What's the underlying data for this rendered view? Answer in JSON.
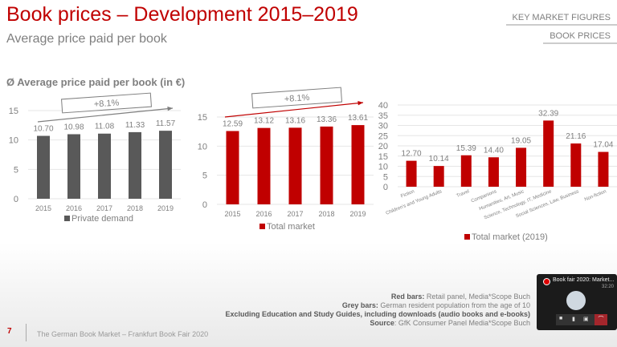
{
  "header": {
    "title": "Book prices – Development 2015–2019",
    "subtitle": "Average price paid per book"
  },
  "nav": {
    "items": [
      "KEY MARKET FIGURES",
      "BOOK PRICES"
    ]
  },
  "section_title": "Ø Average price paid per book (in €)",
  "colors": {
    "grey": "#595959",
    "red": "#c00000"
  },
  "chart_data": [
    {
      "type": "bar",
      "categories": [
        "2015",
        "2016",
        "2017",
        "2018",
        "2019"
      ],
      "series": [
        {
          "name": "Private demand",
          "values": [
            10.7,
            10.98,
            11.08,
            11.33,
            11.57
          ]
        }
      ],
      "ylim": [
        0,
        15
      ],
      "yticks": [
        0,
        5,
        10,
        15
      ],
      "annotation": "+8.1%",
      "legend": "bottom",
      "color": "#595959",
      "grid": true
    },
    {
      "type": "bar",
      "categories": [
        "2015",
        "2016",
        "2017",
        "2018",
        "2019"
      ],
      "series": [
        {
          "name": "Total market",
          "values": [
            12.59,
            13.12,
            13.16,
            13.36,
            13.61
          ]
        }
      ],
      "ylim": [
        0,
        15
      ],
      "yticks": [
        0,
        5,
        10,
        15
      ],
      "annotation": "+8.1%",
      "legend": "bottom",
      "color": "#c00000",
      "grid": true
    },
    {
      "type": "bar",
      "categories": [
        "Fiction",
        "Children's and Young Adults",
        "Travel",
        "Companions",
        "Humanities, Art, Music",
        "Science, Technology, IT, Medicine",
        "Social Sciences, Law, Business",
        "Non-fiction"
      ],
      "series": [
        {
          "name": "Total market (2019)",
          "values": [
            12.7,
            10.14,
            15.39,
            14.4,
            19.05,
            32.39,
            21.16,
            17.04
          ]
        }
      ],
      "ylim": [
        0,
        40
      ],
      "yticks": [
        0,
        5,
        10,
        15,
        20,
        25,
        30,
        35,
        40
      ],
      "legend": "bottom",
      "color": "#c00000",
      "grid": true
    }
  ],
  "notes": [
    {
      "label": "Red bars:",
      "text": " Retail panel, Media*Scope Buch"
    },
    {
      "label": "Grey bars:",
      "text": " German resident population from the age of 10"
    },
    {
      "label": "Excluding Education and Study Guides, including downloads (audio books and e-books)",
      "text": ""
    },
    {
      "label": "Source",
      "text": ": GfK Consumer Panel Media*Scope Buch"
    }
  ],
  "footer": {
    "page": "7",
    "text": "The German Book Market – Frankfurt Book Fair 2020"
  },
  "popup": {
    "title": "Book fair 2020: Market...",
    "time": "32:20"
  }
}
